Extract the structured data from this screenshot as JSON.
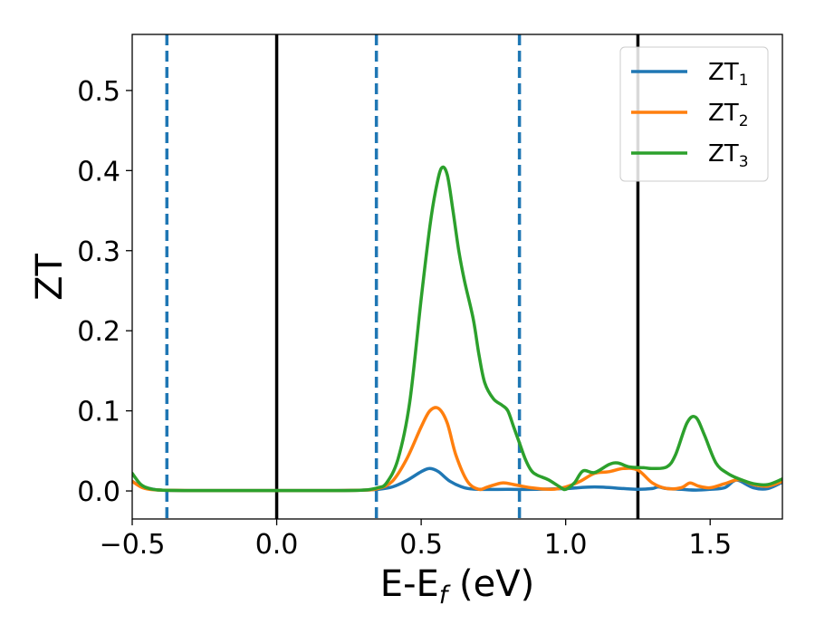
{
  "chart_data": {
    "type": "line",
    "xlabel": {
      "main": "E-E",
      "sub": "f",
      "tail": " (eV)"
    },
    "ylabel": "ZT",
    "xlim": [
      -0.5,
      1.75
    ],
    "ylim": [
      -0.035,
      0.57
    ],
    "xticks": [
      -0.5,
      0.0,
      0.5,
      1.0,
      1.5
    ],
    "xtick_labels": [
      "−0.5",
      "0.0",
      "0.5",
      "1.0",
      "1.5"
    ],
    "yticks": [
      0.0,
      0.1,
      0.2,
      0.3,
      0.4,
      0.5
    ],
    "ytick_labels": [
      "0.0",
      "0.1",
      "0.2",
      "0.3",
      "0.4",
      "0.5"
    ],
    "vlines_dashed": {
      "x": [
        -0.38,
        0.345,
        0.84
      ],
      "color": "#1f77b4"
    },
    "vlines_solid": {
      "x": [
        0.0,
        1.25
      ],
      "color": "#000000"
    },
    "legend_position": "top-right",
    "series": [
      {
        "name": "ZT",
        "sub": "1",
        "color": "#1f77b4",
        "x": [
          -0.5,
          -0.47,
          -0.44,
          -0.4,
          -0.3,
          -0.2,
          -0.1,
          0.0,
          0.1,
          0.2,
          0.3,
          0.35,
          0.4,
          0.45,
          0.5,
          0.53,
          0.56,
          0.6,
          0.65,
          0.7,
          0.8,
          0.9,
          1.0,
          1.1,
          1.2,
          1.25,
          1.3,
          1.32,
          1.35,
          1.4,
          1.45,
          1.5,
          1.55,
          1.58,
          1.6,
          1.65,
          1.7,
          1.75
        ],
        "y": [
          0.012,
          0.006,
          0.003,
          0.001,
          0.0005,
          0.0005,
          0.0005,
          0.0005,
          0.0005,
          0.0005,
          0.001,
          0.002,
          0.005,
          0.013,
          0.024,
          0.028,
          0.024,
          0.012,
          0.004,
          0.002,
          0.002,
          0.002,
          0.003,
          0.005,
          0.003,
          0.002,
          0.003,
          0.005,
          0.003,
          0.002,
          0.001,
          0.002,
          0.004,
          0.012,
          0.013,
          0.004,
          0.003,
          0.011
        ]
      },
      {
        "name": "ZT",
        "sub": "2",
        "color": "#ff7f0e",
        "x": [
          -0.5,
          -0.47,
          -0.44,
          -0.4,
          -0.3,
          -0.2,
          -0.1,
          0.0,
          0.1,
          0.2,
          0.3,
          0.35,
          0.4,
          0.45,
          0.5,
          0.53,
          0.56,
          0.59,
          0.62,
          0.66,
          0.7,
          0.73,
          0.78,
          0.82,
          0.88,
          0.95,
          1.0,
          1.05,
          1.1,
          1.15,
          1.2,
          1.25,
          1.3,
          1.35,
          1.4,
          1.43,
          1.46,
          1.5,
          1.55,
          1.6,
          1.65,
          1.7,
          1.75
        ],
        "y": [
          0.012,
          0.005,
          0.002,
          0.001,
          0.0005,
          0.0005,
          0.0005,
          0.0005,
          0.0005,
          0.0005,
          0.001,
          0.003,
          0.012,
          0.04,
          0.08,
          0.1,
          0.103,
          0.085,
          0.045,
          0.012,
          0.002,
          0.005,
          0.01,
          0.008,
          0.004,
          0.002,
          0.005,
          0.012,
          0.022,
          0.024,
          0.028,
          0.026,
          0.01,
          0.003,
          0.004,
          0.01,
          0.006,
          0.004,
          0.009,
          0.014,
          0.008,
          0.006,
          0.012
        ]
      },
      {
        "name": "ZT",
        "sub": "3",
        "color": "#2ca02c",
        "x": [
          -0.5,
          -0.47,
          -0.44,
          -0.4,
          -0.3,
          -0.2,
          -0.1,
          0.0,
          0.1,
          0.2,
          0.3,
          0.35,
          0.38,
          0.42,
          0.46,
          0.5,
          0.53,
          0.55,
          0.57,
          0.59,
          0.61,
          0.63,
          0.65,
          0.68,
          0.7,
          0.72,
          0.75,
          0.78,
          0.8,
          0.82,
          0.84,
          0.86,
          0.88,
          0.9,
          0.94,
          0.98,
          1.0,
          1.03,
          1.06,
          1.1,
          1.15,
          1.18,
          1.22,
          1.27,
          1.3,
          1.35,
          1.38,
          1.42,
          1.45,
          1.48,
          1.52,
          1.56,
          1.6,
          1.65,
          1.7,
          1.75
        ],
        "y": [
          0.022,
          0.008,
          0.003,
          0.001,
          0.0005,
          0.0005,
          0.0005,
          0.0005,
          0.0005,
          0.0005,
          0.001,
          0.004,
          0.01,
          0.04,
          0.11,
          0.24,
          0.33,
          0.375,
          0.403,
          0.395,
          0.35,
          0.3,
          0.262,
          0.215,
          0.17,
          0.135,
          0.115,
          0.107,
          0.1,
          0.08,
          0.06,
          0.04,
          0.026,
          0.02,
          0.014,
          0.005,
          0.002,
          0.01,
          0.025,
          0.023,
          0.033,
          0.035,
          0.03,
          0.029,
          0.028,
          0.03,
          0.045,
          0.085,
          0.092,
          0.07,
          0.035,
          0.022,
          0.015,
          0.009,
          0.008,
          0.015
        ]
      }
    ]
  }
}
